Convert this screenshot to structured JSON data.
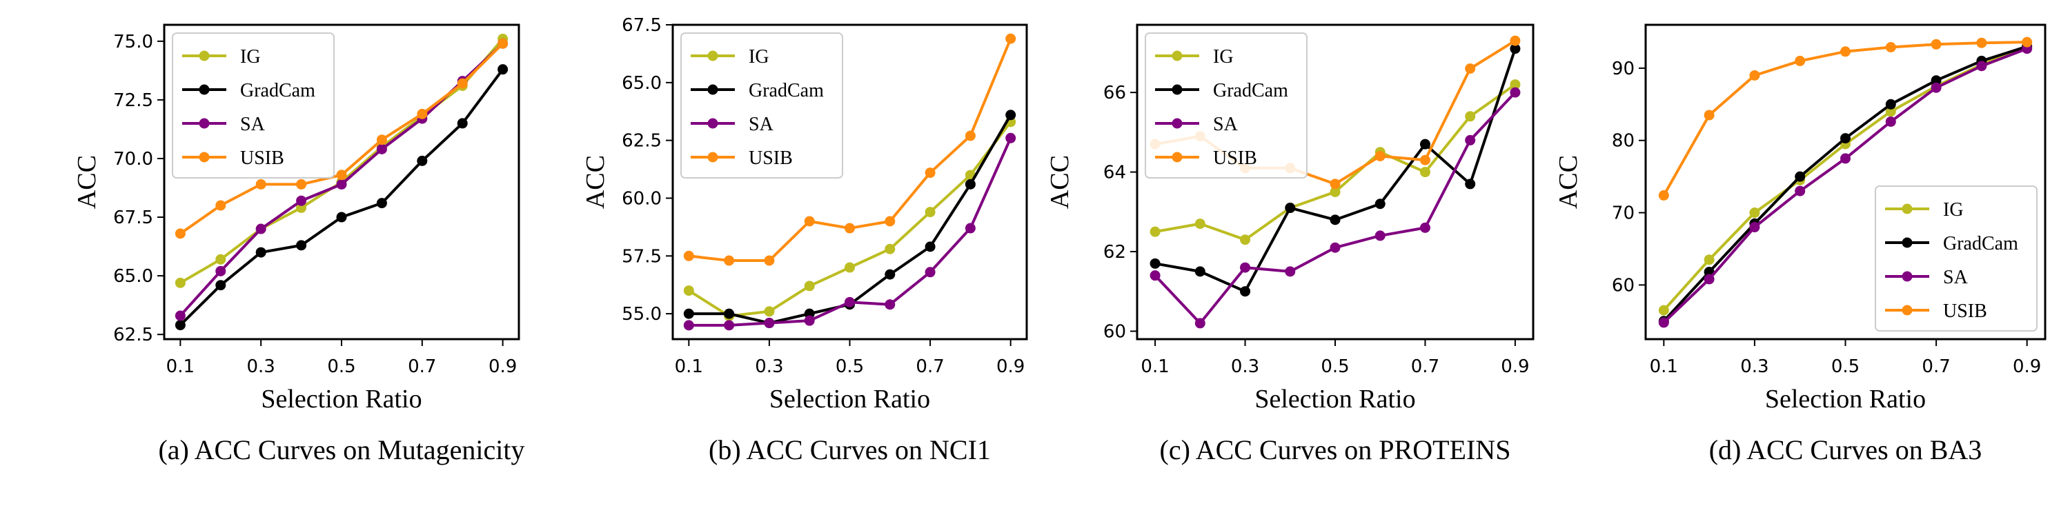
{
  "figure": {
    "xlabel": "Selection Ratio",
    "ylabel": "ACC",
    "x_ticks": [
      "0.1",
      "0.3",
      "0.5",
      "0.7",
      "0.9"
    ],
    "colors": {
      "IG": "#bcbd22",
      "GradCam": "#000000",
      "SA": "#800080",
      "USIB": "#ff8c0f"
    }
  },
  "chart_data": [
    {
      "type": "line",
      "caption": "(a) ACC Curves on Mutagenicity",
      "xlabel": "Selection Ratio",
      "ylabel": "ACC",
      "x": [
        0.1,
        0.2,
        0.3,
        0.4,
        0.5,
        0.6,
        0.7,
        0.8,
        0.9
      ],
      "xlim": [
        0.06,
        0.94
      ],
      "ylim": [
        62.3,
        75.7
      ],
      "yticks": [
        62.5,
        65.0,
        67.5,
        70.0,
        72.5,
        75.0
      ],
      "ytick_labels": [
        "62.5",
        "65.0",
        "67.5",
        "70.0",
        "72.5",
        "75.0"
      ],
      "legend_position": "top-left",
      "series": [
        {
          "name": "IG",
          "values": [
            64.7,
            65.7,
            67.0,
            67.9,
            69.0,
            70.5,
            71.8,
            73.1,
            75.1
          ]
        },
        {
          "name": "GradCam",
          "values": [
            62.9,
            64.6,
            66.0,
            66.3,
            67.5,
            68.1,
            69.9,
            71.5,
            73.8
          ]
        },
        {
          "name": "SA",
          "values": [
            63.3,
            65.2,
            67.0,
            68.2,
            68.9,
            70.4,
            71.7,
            73.3,
            74.9
          ]
        },
        {
          "name": "USIB",
          "values": [
            66.8,
            68.0,
            68.9,
            68.9,
            69.3,
            70.8,
            71.9,
            73.2,
            74.9
          ]
        }
      ]
    },
    {
      "type": "line",
      "caption": "(b) ACC Curves on NCI1",
      "xlabel": "Selection Ratio",
      "ylabel": "ACC",
      "x": [
        0.1,
        0.2,
        0.3,
        0.4,
        0.5,
        0.6,
        0.7,
        0.8,
        0.9
      ],
      "xlim": [
        0.06,
        0.94
      ],
      "ylim": [
        53.9,
        67.5
      ],
      "yticks": [
        55.0,
        57.5,
        60.0,
        62.5,
        65.0,
        67.5
      ],
      "ytick_labels": [
        "55.0",
        "57.5",
        "60.0",
        "62.5",
        "65.0",
        "67.5"
      ],
      "legend_position": "top-left",
      "series": [
        {
          "name": "IG",
          "values": [
            56.0,
            54.9,
            55.1,
            56.2,
            57.0,
            57.8,
            59.4,
            61.0,
            63.3
          ]
        },
        {
          "name": "GradCam",
          "values": [
            55.0,
            55.0,
            54.6,
            55.0,
            55.4,
            56.7,
            57.9,
            60.6,
            63.6
          ]
        },
        {
          "name": "SA",
          "values": [
            54.5,
            54.5,
            54.6,
            54.7,
            55.5,
            55.4,
            56.8,
            58.7,
            62.6
          ]
        },
        {
          "name": "USIB",
          "values": [
            57.5,
            57.3,
            57.3,
            59.0,
            58.7,
            59.0,
            61.1,
            62.7,
            66.9
          ]
        }
      ]
    },
    {
      "type": "line",
      "caption": "(c) ACC Curves on PROTEINS",
      "xlabel": "Selection Ratio",
      "ylabel": "ACC",
      "x": [
        0.1,
        0.2,
        0.3,
        0.4,
        0.5,
        0.6,
        0.7,
        0.8,
        0.9
      ],
      "xlim": [
        0.06,
        0.94
      ],
      "ylim": [
        59.8,
        67.7
      ],
      "yticks": [
        60,
        62,
        64,
        66
      ],
      "ytick_labels": [
        "60",
        "62",
        "64",
        "66"
      ],
      "legend_position": "top-left",
      "series": [
        {
          "name": "IG",
          "values": [
            62.5,
            62.7,
            62.3,
            63.1,
            63.5,
            64.5,
            64.0,
            65.4,
            66.2
          ]
        },
        {
          "name": "GradCam",
          "values": [
            61.7,
            61.5,
            61.0,
            63.1,
            62.8,
            63.2,
            64.7,
            63.7,
            67.1
          ]
        },
        {
          "name": "SA",
          "values": [
            61.4,
            60.2,
            61.6,
            61.5,
            62.1,
            62.4,
            62.6,
            64.8,
            66.0
          ]
        },
        {
          "name": "USIB",
          "values": [
            64.7,
            64.9,
            64.1,
            64.1,
            63.7,
            64.4,
            64.3,
            66.6,
            67.3
          ]
        }
      ]
    },
    {
      "type": "line",
      "caption": "(d) ACC Curves on BA3",
      "xlabel": "Selection Ratio",
      "ylabel": "ACC",
      "x": [
        0.1,
        0.2,
        0.3,
        0.4,
        0.5,
        0.6,
        0.7,
        0.8,
        0.9
      ],
      "xlim": [
        0.06,
        0.94
      ],
      "ylim": [
        52.5,
        96
      ],
      "yticks": [
        60,
        70,
        80,
        90
      ],
      "ytick_labels": [
        "60",
        "70",
        "80",
        "90"
      ],
      "legend_position": "bottom-right",
      "series": [
        {
          "name": "IG",
          "values": [
            56.5,
            63.5,
            70.0,
            74.5,
            79.5,
            84.0,
            87.5,
            90.5,
            93.0
          ]
        },
        {
          "name": "GradCam",
          "values": [
            55.0,
            61.8,
            68.5,
            75.0,
            80.3,
            85.0,
            88.3,
            91.0,
            93.0
          ]
        },
        {
          "name": "SA",
          "values": [
            54.8,
            60.8,
            68.0,
            73.0,
            77.5,
            82.6,
            87.3,
            90.3,
            92.7
          ]
        },
        {
          "name": "USIB",
          "values": [
            72.4,
            83.5,
            89.0,
            91.0,
            92.3,
            92.9,
            93.3,
            93.5,
            93.6
          ]
        }
      ]
    }
  ]
}
